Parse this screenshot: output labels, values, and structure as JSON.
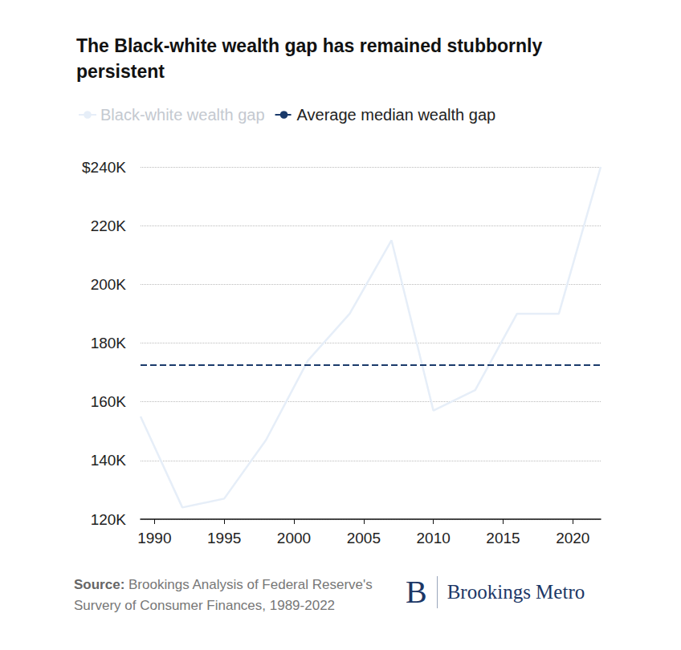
{
  "chart_data": {
    "type": "line",
    "title": "The Black-white wealth gap has remained stubbornly persistent",
    "x": [
      1989,
      1992,
      1995,
      1998,
      2001,
      2004,
      2007,
      2010,
      2013,
      2016,
      2019,
      2022
    ],
    "series": [
      {
        "name": "Black-white wealth gap",
        "color": "#e6eef8",
        "line_style": "solid",
        "values": [
          155000,
          124000,
          127000,
          147000,
          174000,
          190000,
          215000,
          157000,
          164000,
          190000,
          190000,
          240000
        ]
      },
      {
        "name": "Average median wealth gap",
        "color": "#1a3a6b",
        "line_style": "dashed",
        "values": [
          172500,
          172500,
          172500,
          172500,
          172500,
          172500,
          172500,
          172500,
          172500,
          172500,
          172500,
          172500
        ]
      }
    ],
    "xlim": [
      1989,
      2022
    ],
    "xticks": [
      1990,
      1995,
      2000,
      2005,
      2010,
      2015,
      2020
    ],
    "ylim": [
      120000,
      240000
    ],
    "yticks": [
      {
        "value": 120000,
        "label": "120K"
      },
      {
        "value": 140000,
        "label": "140K"
      },
      {
        "value": 160000,
        "label": "160K"
      },
      {
        "value": 180000,
        "label": "180K"
      },
      {
        "value": 200000,
        "label": "200K"
      },
      {
        "value": 220000,
        "label": "220K"
      },
      {
        "value": 240000,
        "label": "$240K"
      }
    ],
    "grid": true,
    "legend": "top-left",
    "source_label": "Source:",
    "source": "Brookings Analysis of Federal Reserve's Survery of Consumer Finances, 1989-2022",
    "brand_mark": "B",
    "brand": "Brookings Metro"
  }
}
